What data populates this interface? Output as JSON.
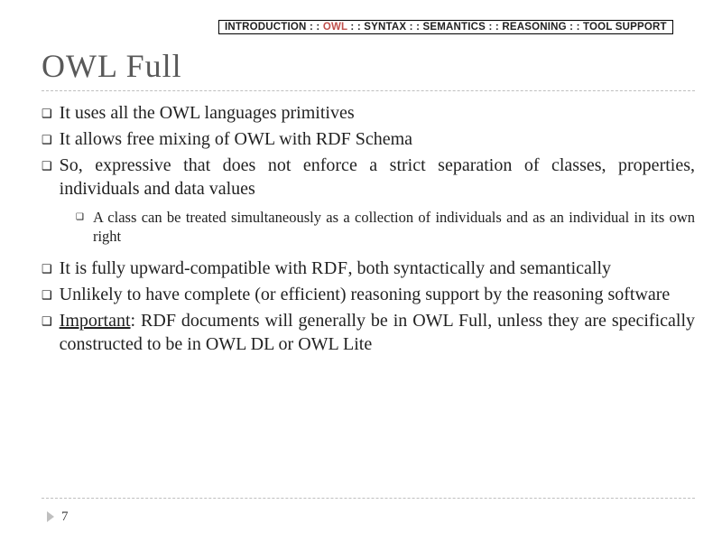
{
  "breadcrumb": {
    "items": [
      {
        "label": "INTRODUCTION",
        "active": false
      },
      {
        "label": "OWL",
        "active": true
      },
      {
        "label": "SYNTAX",
        "active": false
      },
      {
        "label": "SEMANTICS",
        "active": false
      },
      {
        "label": "REASONING",
        "active": false
      },
      {
        "label": "TOOL SUPPORT",
        "active": false
      }
    ],
    "separator": " : : ",
    "active_color": "#c0504d"
  },
  "title": "OWL Full",
  "bullets": {
    "b1": "It uses all the OWL languages primitives",
    "b2": "It allows free mixing of OWL with RDF Schema",
    "b3": "So, expressive that does not enforce a strict separation of classes, properties, individuals and data values",
    "b3_sub": "A class can be treated simultaneously as a collection of individuals and as an individual in its own right",
    "b4_pre": "It is fully upward-compatible with ",
    "b4_sc": "RDF",
    "b4_post": ", both syntactically and semantically",
    "b5": "Unlikely to have complete (or efficient) reasoning support by the reasoning software",
    "b6_pre": "Important",
    "b6_post": ": RDF documents will generally be in OWL Full, unless they are specifically constructed to be in OWL DL or OWL Lite"
  },
  "page_number": "7",
  "style": {
    "title_color": "#595959",
    "title_fontsize": 36,
    "body_fontsize": 20,
    "sub_fontsize": 16.5,
    "rule_color": "#bfbfbf",
    "marker_glyph": "❑",
    "background": "#ffffff"
  }
}
